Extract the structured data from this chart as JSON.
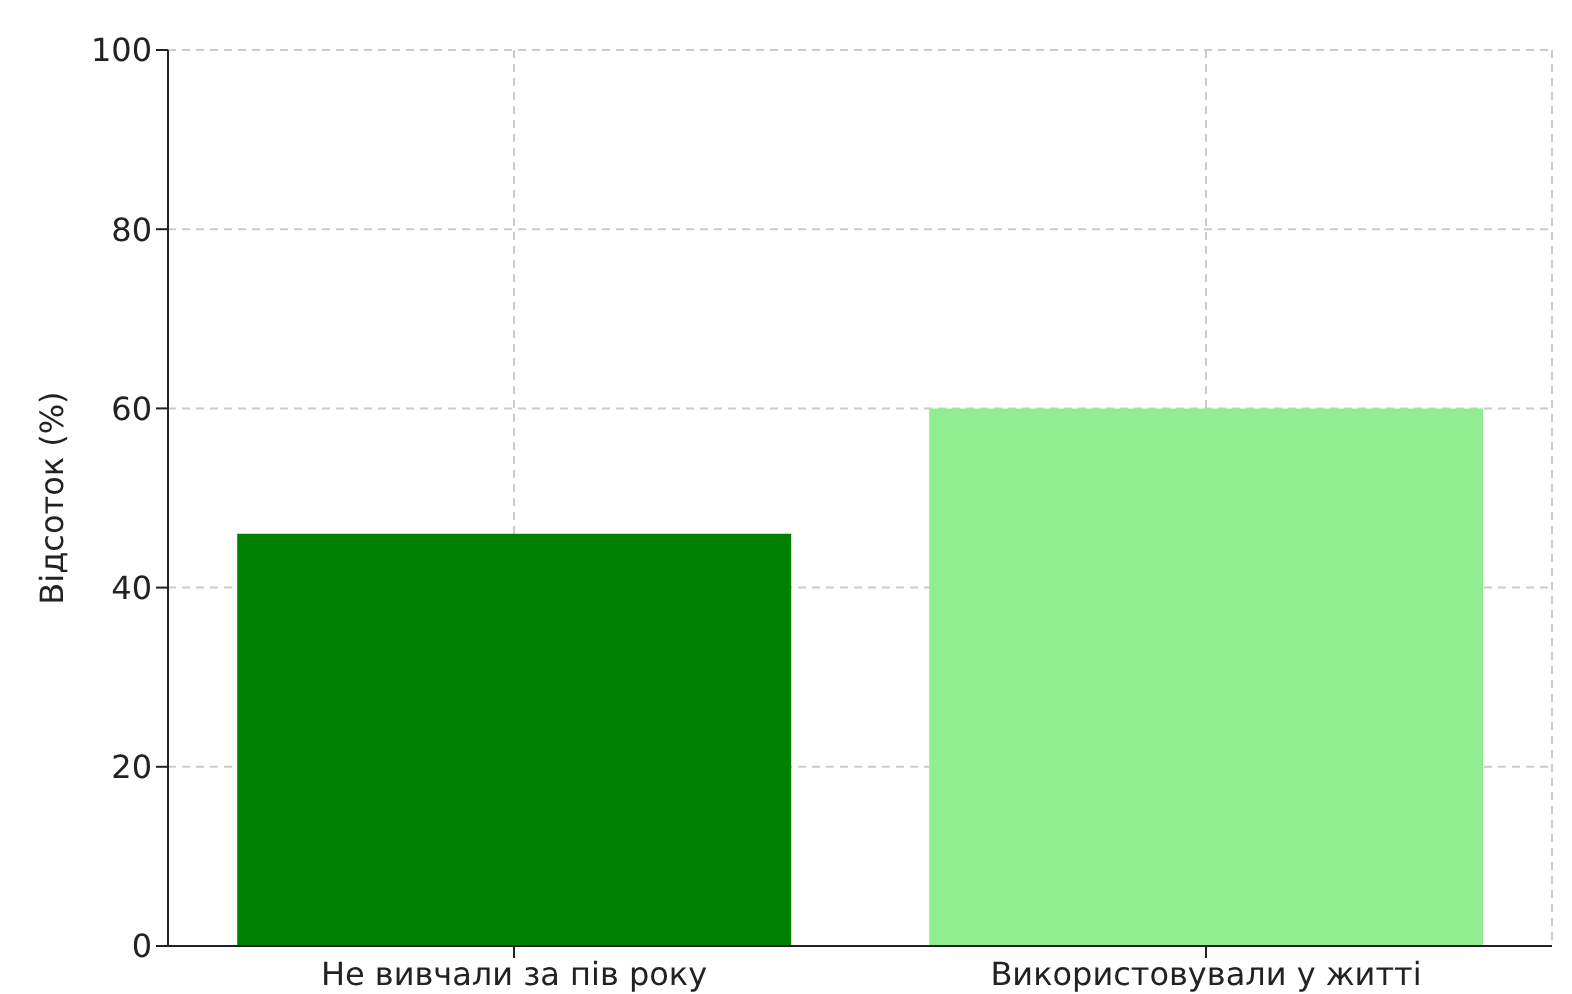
{
  "chart_data": {
    "type": "bar",
    "ylabel": "Відсоток (%)",
    "categories": [
      "Не вивчали за пів року",
      "Використовували у житті"
    ],
    "values": [
      46,
      60
    ],
    "colors": [
      "#008000",
      "#90ee90"
    ],
    "ylim": [
      0,
      100
    ],
    "yticks": [
      0,
      20,
      40,
      60,
      80,
      100
    ],
    "grid": true
  }
}
